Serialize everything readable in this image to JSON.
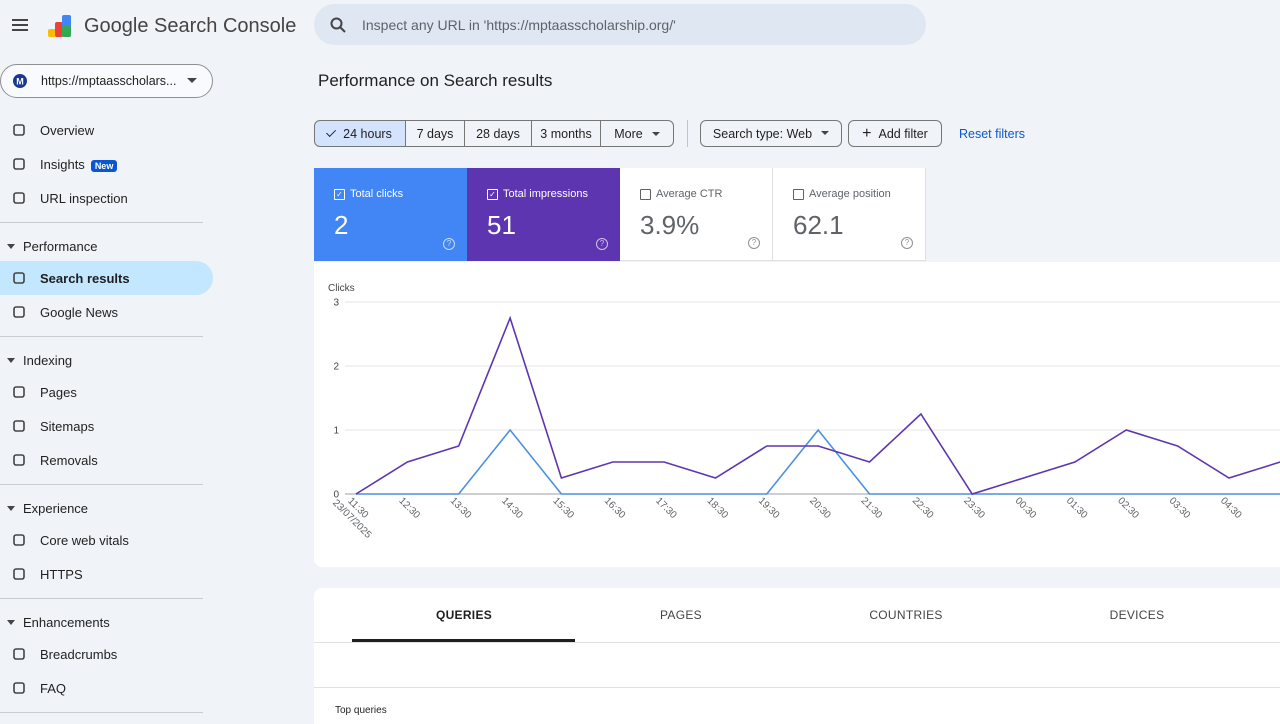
{
  "header": {
    "app_name": "Google Search Console",
    "search_placeholder": "Inspect any URL in 'https://mptaasscholarship.org/'"
  },
  "property": "https://mptaasscholars...",
  "nav": {
    "top": [
      {
        "label": "Overview"
      },
      {
        "label": "Insights",
        "badge": "New"
      },
      {
        "label": "URL inspection"
      }
    ],
    "sections": [
      {
        "title": "Performance",
        "items": [
          {
            "label": "Search results",
            "active": true
          },
          {
            "label": "Google News"
          }
        ]
      },
      {
        "title": "Indexing",
        "items": [
          {
            "label": "Pages"
          },
          {
            "label": "Sitemaps"
          },
          {
            "label": "Removals"
          }
        ]
      },
      {
        "title": "Experience",
        "items": [
          {
            "label": "Core web vitals"
          },
          {
            "label": "HTTPS"
          }
        ]
      },
      {
        "title": "Enhancements",
        "items": [
          {
            "label": "Breadcrumbs"
          },
          {
            "label": "FAQ"
          }
        ]
      }
    ]
  },
  "page_title": "Performance on Search results",
  "filters": {
    "date_ranges": [
      "24 hours",
      "7 days",
      "28 days",
      "3 months",
      "More"
    ],
    "search_type": "Search type: Web",
    "add_filter": "Add filter",
    "reset": "Reset filters"
  },
  "metrics": [
    {
      "label": "Total clicks",
      "value": "2",
      "color": "#4285f4",
      "checked": true
    },
    {
      "label": "Total impressions",
      "value": "51",
      "color": "#5e35b1",
      "checked": true
    },
    {
      "label": "Average CTR",
      "value": "3.9%",
      "checked": false
    },
    {
      "label": "Average position",
      "value": "62.1",
      "checked": false
    }
  ],
  "chart_data": {
    "type": "line",
    "y_label": "Clicks",
    "x_date": "23/07/2025",
    "categories": [
      "11:30",
      "12:30",
      "13:30",
      "14:30",
      "15:30",
      "16:30",
      "17:30",
      "18:30",
      "19:30",
      "20:30",
      "21:30",
      "22:30",
      "23:30",
      "00:30",
      "01:30",
      "02:30",
      "03:30",
      "04:30",
      null
    ],
    "series": [
      {
        "name": "Total clicks",
        "color": "#4a90e2",
        "values": [
          0,
          0,
          0,
          1,
          0,
          0,
          0,
          0,
          0,
          1,
          0,
          0,
          0,
          0,
          0,
          0,
          0,
          0,
          0
        ]
      },
      {
        "name": "Total impressions",
        "color": "#5e35b1",
        "axis": "y2",
        "values": [
          0,
          2,
          3,
          11,
          1,
          2,
          2,
          1,
          3,
          3,
          2,
          5,
          0,
          1,
          2,
          4,
          3,
          1,
          2
        ]
      }
    ],
    "ylim": [
      0,
      3
    ],
    "yticks": [
      0,
      1,
      2,
      3
    ],
    "y2lim": [
      0,
      12
    ],
    "grid": true
  },
  "tabs": [
    "QUERIES",
    "PAGES",
    "COUNTRIES",
    "DEVICES"
  ],
  "table_title": "Top queries"
}
